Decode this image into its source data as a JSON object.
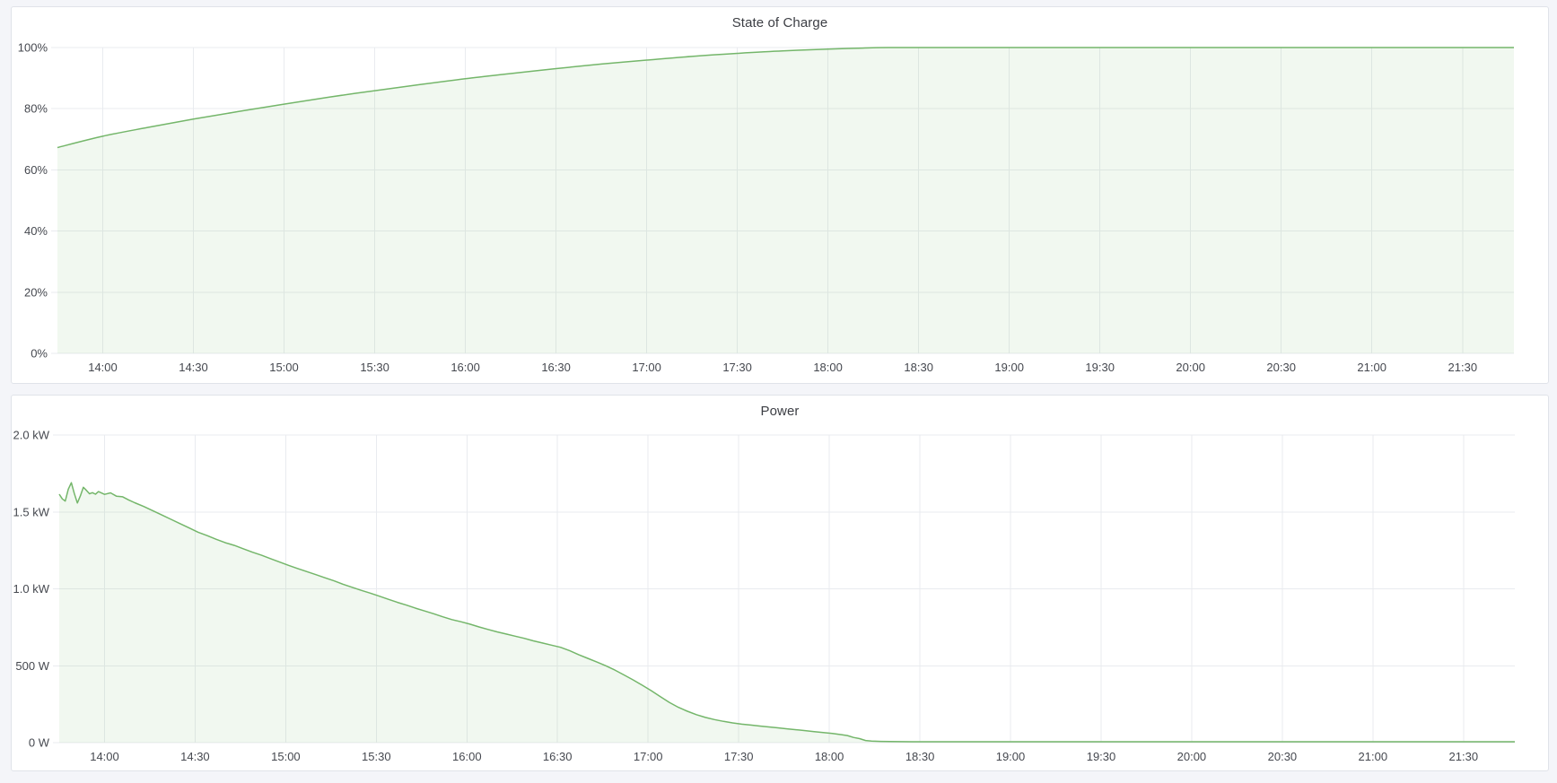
{
  "panels": [
    {
      "title": "State of Charge"
    },
    {
      "title": "Power"
    }
  ],
  "colors": {
    "series_green": "#74b66a",
    "series_fill": "rgba(115,182,105,0.10)",
    "page_background": "#f4f5f9",
    "panel_background": "#ffffff",
    "gridline": "#e9ebef",
    "tick_text": "#45484f"
  },
  "chart_data": [
    {
      "type": "area",
      "title": "State of Charge",
      "xlabel": "",
      "ylabel": "",
      "grid": true,
      "legend": "none",
      "x_range": [
        "13:45",
        "21:47"
      ],
      "ylim": [
        0,
        100
      ],
      "x_ticks": [
        "14:00",
        "14:30",
        "15:00",
        "15:30",
        "16:00",
        "16:30",
        "17:00",
        "17:30",
        "18:00",
        "18:30",
        "19:00",
        "19:30",
        "20:00",
        "20:30",
        "21:00",
        "21:30"
      ],
      "y_ticks": [
        {
          "v": 0,
          "label": "0%"
        },
        {
          "v": 20,
          "label": "20%"
        },
        {
          "v": 40,
          "label": "40%"
        },
        {
          "v": 60,
          "label": "60%"
        },
        {
          "v": 80,
          "label": "80%"
        },
        {
          "v": 100,
          "label": "100%"
        }
      ],
      "series": [
        {
          "name": "State of Charge",
          "unit": "percent",
          "color": "#74b66a",
          "fill": "rgba(115,182,105,0.10)",
          "smooth": true,
          "points": [
            [
              "13:45",
              67.3
            ],
            [
              "14:00",
              71.0
            ],
            [
              "14:15",
              73.9
            ],
            [
              "14:30",
              76.6
            ],
            [
              "14:45",
              79.1
            ],
            [
              "15:00",
              81.5
            ],
            [
              "15:15",
              83.8
            ],
            [
              "15:30",
              85.9
            ],
            [
              "15:45",
              87.9
            ],
            [
              "16:00",
              89.8
            ],
            [
              "16:15",
              91.5
            ],
            [
              "16:30",
              93.1
            ],
            [
              "16:45",
              94.6
            ],
            [
              "17:00",
              95.9
            ],
            [
              "17:15",
              97.1
            ],
            [
              "17:30",
              98.1
            ],
            [
              "17:45",
              98.9
            ],
            [
              "18:00",
              99.5
            ],
            [
              "18:10",
              99.8
            ],
            [
              "18:20",
              100
            ],
            [
              "18:40",
              100
            ],
            [
              "19:00",
              100
            ],
            [
              "19:30",
              100
            ],
            [
              "20:00",
              100
            ],
            [
              "20:30",
              100
            ],
            [
              "21:00",
              100
            ],
            [
              "21:30",
              100
            ],
            [
              "21:47",
              100
            ]
          ]
        }
      ]
    },
    {
      "type": "area",
      "title": "Power",
      "xlabel": "",
      "ylabel": "",
      "grid": true,
      "legend": "none",
      "x_range": [
        "13:45",
        "21:47"
      ],
      "ylim": [
        0,
        2000
      ],
      "x_ticks": [
        "14:00",
        "14:30",
        "15:00",
        "15:30",
        "16:00",
        "16:30",
        "17:00",
        "17:30",
        "18:00",
        "18:30",
        "19:00",
        "19:30",
        "20:00",
        "20:30",
        "21:00",
        "21:30"
      ],
      "y_ticks": [
        {
          "v": 0,
          "label": "0 W"
        },
        {
          "v": 500,
          "label": "500 W"
        },
        {
          "v": 1000,
          "label": "1.0 kW"
        },
        {
          "v": 1500,
          "label": "1.5 kW"
        },
        {
          "v": 2000,
          "label": "2.0 kW"
        }
      ],
      "series": [
        {
          "name": "Power",
          "unit": "watt",
          "color": "#74b66a",
          "fill": "rgba(115,182,105,0.10)",
          "smooth": false,
          "points": [
            [
              "13:45",
              1615
            ],
            [
              "13:46",
              1585
            ],
            [
              "13:47",
              1570
            ],
            [
              "13:48",
              1648
            ],
            [
              "13:49",
              1690
            ],
            [
              "13:50",
              1620
            ],
            [
              "13:51",
              1558
            ],
            [
              "13:52",
              1605
            ],
            [
              "13:53",
              1660
            ],
            [
              "13:54",
              1640
            ],
            [
              "13:55",
              1618
            ],
            [
              "13:56",
              1625
            ],
            [
              "13:57",
              1615
            ],
            [
              "13:58",
              1632
            ],
            [
              "14:00",
              1614
            ],
            [
              "14:02",
              1624
            ],
            [
              "14:04",
              1602
            ],
            [
              "14:06",
              1598
            ],
            [
              "14:08",
              1578
            ],
            [
              "14:10",
              1560
            ],
            [
              "14:13",
              1535
            ],
            [
              "14:16",
              1508
            ],
            [
              "14:19",
              1480
            ],
            [
              "14:22",
              1452
            ],
            [
              "14:25",
              1424
            ],
            [
              "14:28",
              1396
            ],
            [
              "14:31",
              1368
            ],
            [
              "14:34",
              1346
            ],
            [
              "14:37",
              1322
            ],
            [
              "14:40",
              1300
            ],
            [
              "14:43",
              1282
            ],
            [
              "14:46",
              1260
            ],
            [
              "14:49",
              1238
            ],
            [
              "14:52",
              1218
            ],
            [
              "14:55",
              1196
            ],
            [
              "14:58",
              1174
            ],
            [
              "15:01",
              1152
            ],
            [
              "15:04",
              1132
            ],
            [
              "15:07",
              1112
            ],
            [
              "15:10",
              1092
            ],
            [
              "15:13",
              1072
            ],
            [
              "15:16",
              1052
            ],
            [
              "15:19",
              1030
            ],
            [
              "15:22",
              1010
            ],
            [
              "15:25",
              990
            ],
            [
              "15:28",
              972
            ],
            [
              "15:31",
              952
            ],
            [
              "15:34",
              932
            ],
            [
              "15:37",
              912
            ],
            [
              "15:40",
              894
            ],
            [
              "15:43",
              874
            ],
            [
              "15:46",
              856
            ],
            [
              "15:49",
              838
            ],
            [
              "15:52",
              818
            ],
            [
              "15:55",
              800
            ],
            [
              "15:58",
              786
            ],
            [
              "16:01",
              770
            ],
            [
              "16:04",
              752
            ],
            [
              "16:07",
              736
            ],
            [
              "16:10",
              720
            ],
            [
              "16:13",
              706
            ],
            [
              "16:16",
              692
            ],
            [
              "16:19",
              678
            ],
            [
              "16:22",
              662
            ],
            [
              "16:25",
              648
            ],
            [
              "16:28",
              634
            ],
            [
              "16:31",
              620
            ],
            [
              "16:34",
              598
            ],
            [
              "16:37",
              572
            ],
            [
              "16:40",
              548
            ],
            [
              "16:43",
              524
            ],
            [
              "16:46",
              500
            ],
            [
              "16:49",
              472
            ],
            [
              "16:52",
              440
            ],
            [
              "16:55",
              408
            ],
            [
              "16:58",
              374
            ],
            [
              "17:01",
              338
            ],
            [
              "17:04",
              300
            ],
            [
              "17:07",
              262
            ],
            [
              "17:10",
              230
            ],
            [
              "17:13",
              204
            ],
            [
              "17:16",
              182
            ],
            [
              "17:19",
              164
            ],
            [
              "17:22",
              150
            ],
            [
              "17:25",
              138
            ],
            [
              "17:28",
              128
            ],
            [
              "17:31",
              120
            ],
            [
              "17:34",
              114
            ],
            [
              "17:37",
              108
            ],
            [
              "17:40",
              102
            ],
            [
              "17:43",
              96
            ],
            [
              "17:46",
              90
            ],
            [
              "17:49",
              84
            ],
            [
              "17:52",
              78
            ],
            [
              "17:55",
              72
            ],
            [
              "17:58",
              66
            ],
            [
              "18:01",
              60
            ],
            [
              "18:04",
              52
            ],
            [
              "18:06",
              46
            ],
            [
              "18:08",
              34
            ],
            [
              "18:10",
              26
            ],
            [
              "18:12",
              14
            ],
            [
              "18:14",
              10
            ],
            [
              "18:17",
              8
            ],
            [
              "18:20",
              7
            ],
            [
              "18:30",
              6
            ],
            [
              "18:45",
              6
            ],
            [
              "19:00",
              6
            ],
            [
              "19:30",
              6
            ],
            [
              "20:00",
              6
            ],
            [
              "20:30",
              6
            ],
            [
              "21:00",
              6
            ],
            [
              "21:30",
              6
            ],
            [
              "21:47",
              6
            ]
          ]
        }
      ]
    }
  ]
}
